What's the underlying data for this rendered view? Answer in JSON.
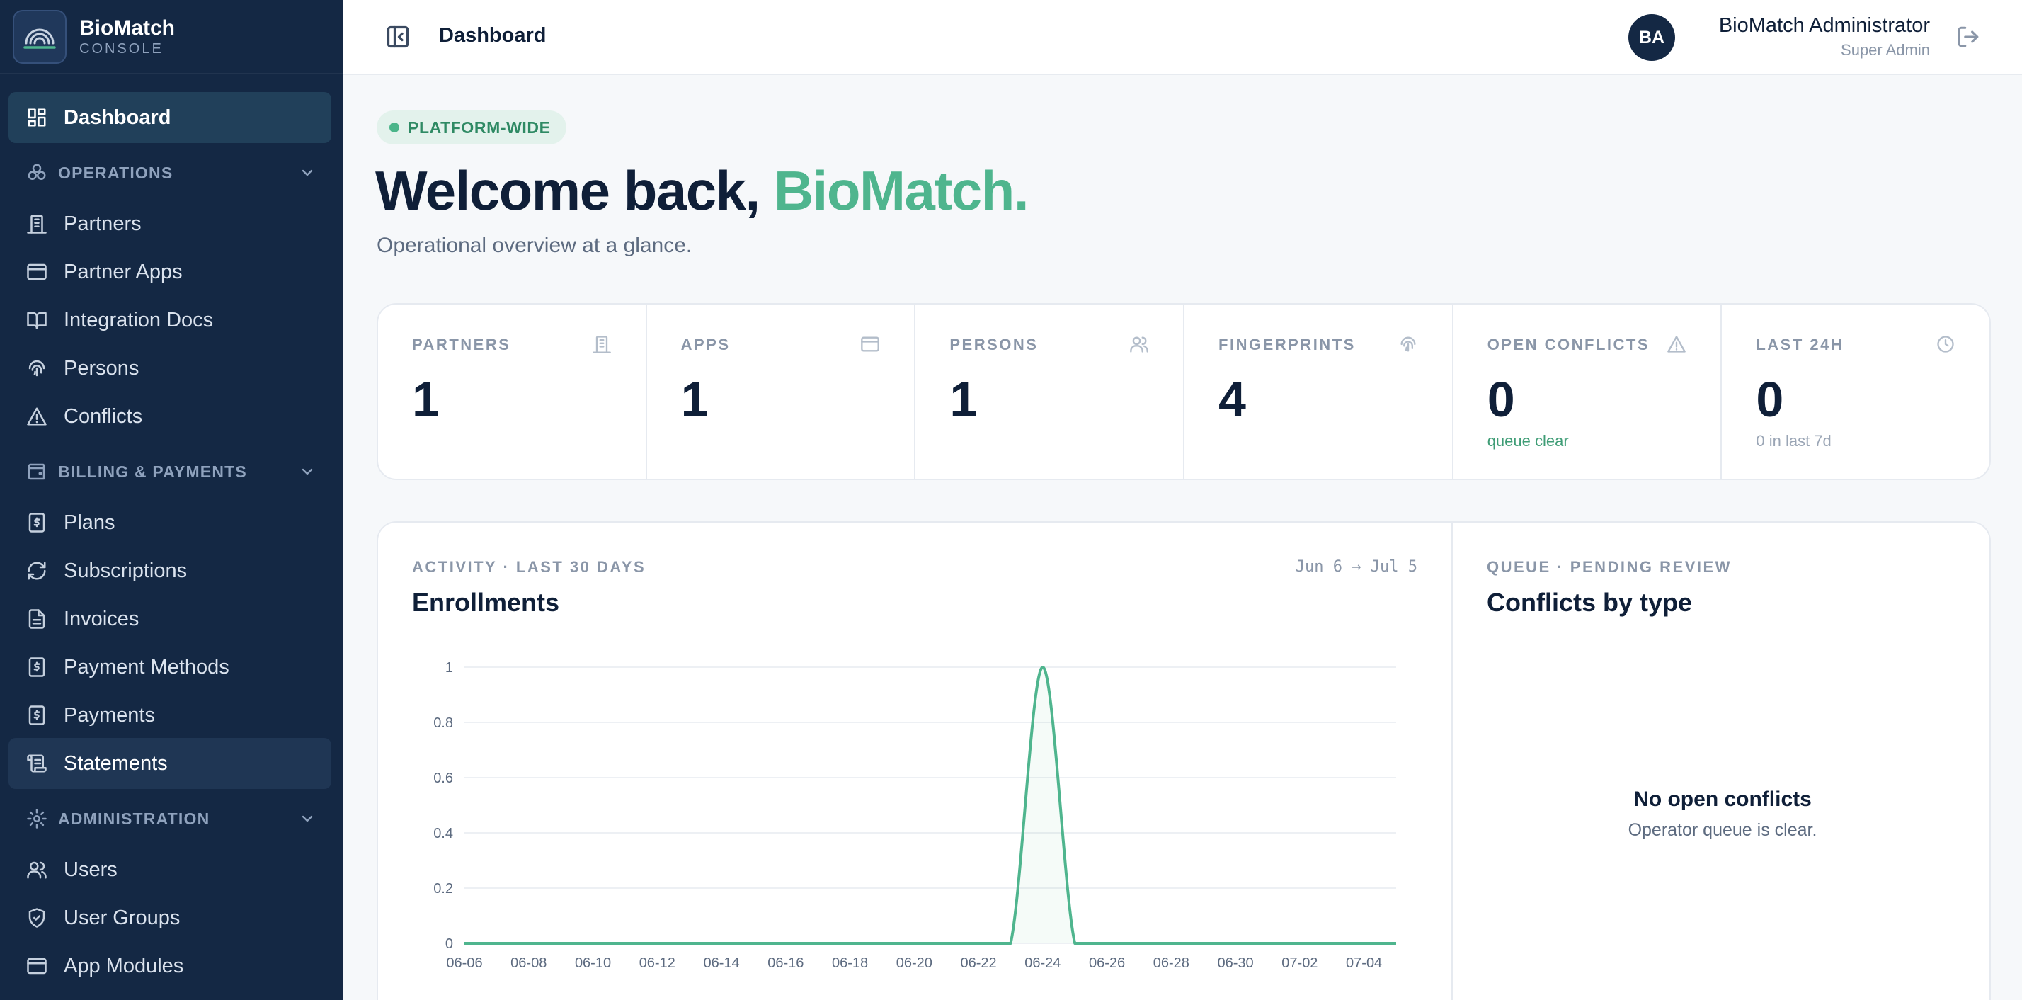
{
  "brand": {
    "name": "BioMatch",
    "sub": "CONSOLE"
  },
  "nav": {
    "dashboard": "Dashboard",
    "operations": "OPERATIONS",
    "partners": "Partners",
    "partner_apps": "Partner Apps",
    "integration_docs": "Integration Docs",
    "persons": "Persons",
    "conflicts": "Conflicts",
    "billing": "BILLING & PAYMENTS",
    "plans": "Plans",
    "subscriptions": "Subscriptions",
    "invoices": "Invoices",
    "payment_methods": "Payment Methods",
    "payments": "Payments",
    "statements": "Statements",
    "administration": "ADMINISTRATION",
    "users": "Users",
    "user_groups": "User Groups",
    "app_modules": "App Modules"
  },
  "header": {
    "title": "Dashboard",
    "user_initials": "BA",
    "user_name": "BioMatch Administrator",
    "user_role": "Super Admin"
  },
  "hero": {
    "badge": "PLATFORM-WIDE",
    "welcome_prefix": "Welcome back, ",
    "welcome_name": "BioMatch.",
    "subtitle": "Operational overview at a glance."
  },
  "stats": [
    {
      "label": "PARTNERS",
      "value": "1",
      "note": "",
      "icon": "building-icon"
    },
    {
      "label": "APPS",
      "value": "1",
      "note": "",
      "icon": "window-icon"
    },
    {
      "label": "PERSONS",
      "value": "1",
      "note": "",
      "icon": "users-icon"
    },
    {
      "label": "FINGERPRINTS",
      "value": "4",
      "note": "",
      "icon": "fingerprint-icon"
    },
    {
      "label": "OPEN CONFLICTS",
      "value": "0",
      "note": "queue clear",
      "icon": "warning-icon"
    },
    {
      "label": "LAST 24H",
      "value": "0",
      "note": "0 in last 7d",
      "icon": "clock-icon"
    }
  ],
  "activity": {
    "eyebrow": "ACTIVITY · LAST 30 DAYS",
    "title": "Enrollments",
    "range": "Jun 6 → Jul 5"
  },
  "queue": {
    "eyebrow": "QUEUE · PENDING REVIEW",
    "title": "Conflicts by type",
    "empty_title": "No open conflicts",
    "empty_sub": "Operator queue is clear."
  },
  "colors": {
    "sidebar": "#142844",
    "accent": "#4fb58e",
    "line": "#4fb58e"
  },
  "chart_data": {
    "type": "area",
    "title": "Enrollments",
    "x": [
      "06-06",
      "06-07",
      "06-08",
      "06-09",
      "06-10",
      "06-11",
      "06-12",
      "06-13",
      "06-14",
      "06-15",
      "06-16",
      "06-17",
      "06-18",
      "06-19",
      "06-20",
      "06-21",
      "06-22",
      "06-23",
      "06-24",
      "06-25",
      "06-26",
      "06-27",
      "06-28",
      "06-29",
      "06-30",
      "07-01",
      "07-02",
      "07-03",
      "07-04",
      "07-05"
    ],
    "series": [
      {
        "values": [
          0,
          0,
          0,
          0,
          0,
          0,
          0,
          0,
          0,
          0,
          0,
          0,
          0,
          0,
          0,
          0,
          0,
          0,
          1,
          0,
          0,
          0,
          0,
          0,
          0,
          0,
          0,
          0,
          0,
          0
        ]
      }
    ],
    "x_tick_labels": [
      "06-06",
      "06-08",
      "06-10",
      "06-12",
      "06-14",
      "06-16",
      "06-18",
      "06-20",
      "06-22",
      "06-24",
      "06-26",
      "06-28",
      "06-30",
      "07-02",
      "07-04"
    ],
    "y_ticks": [
      "0",
      "0.2",
      "0.4",
      "0.6",
      "0.8",
      "1"
    ],
    "ylim": [
      0,
      1
    ],
    "grid": true,
    "legend": "none"
  }
}
